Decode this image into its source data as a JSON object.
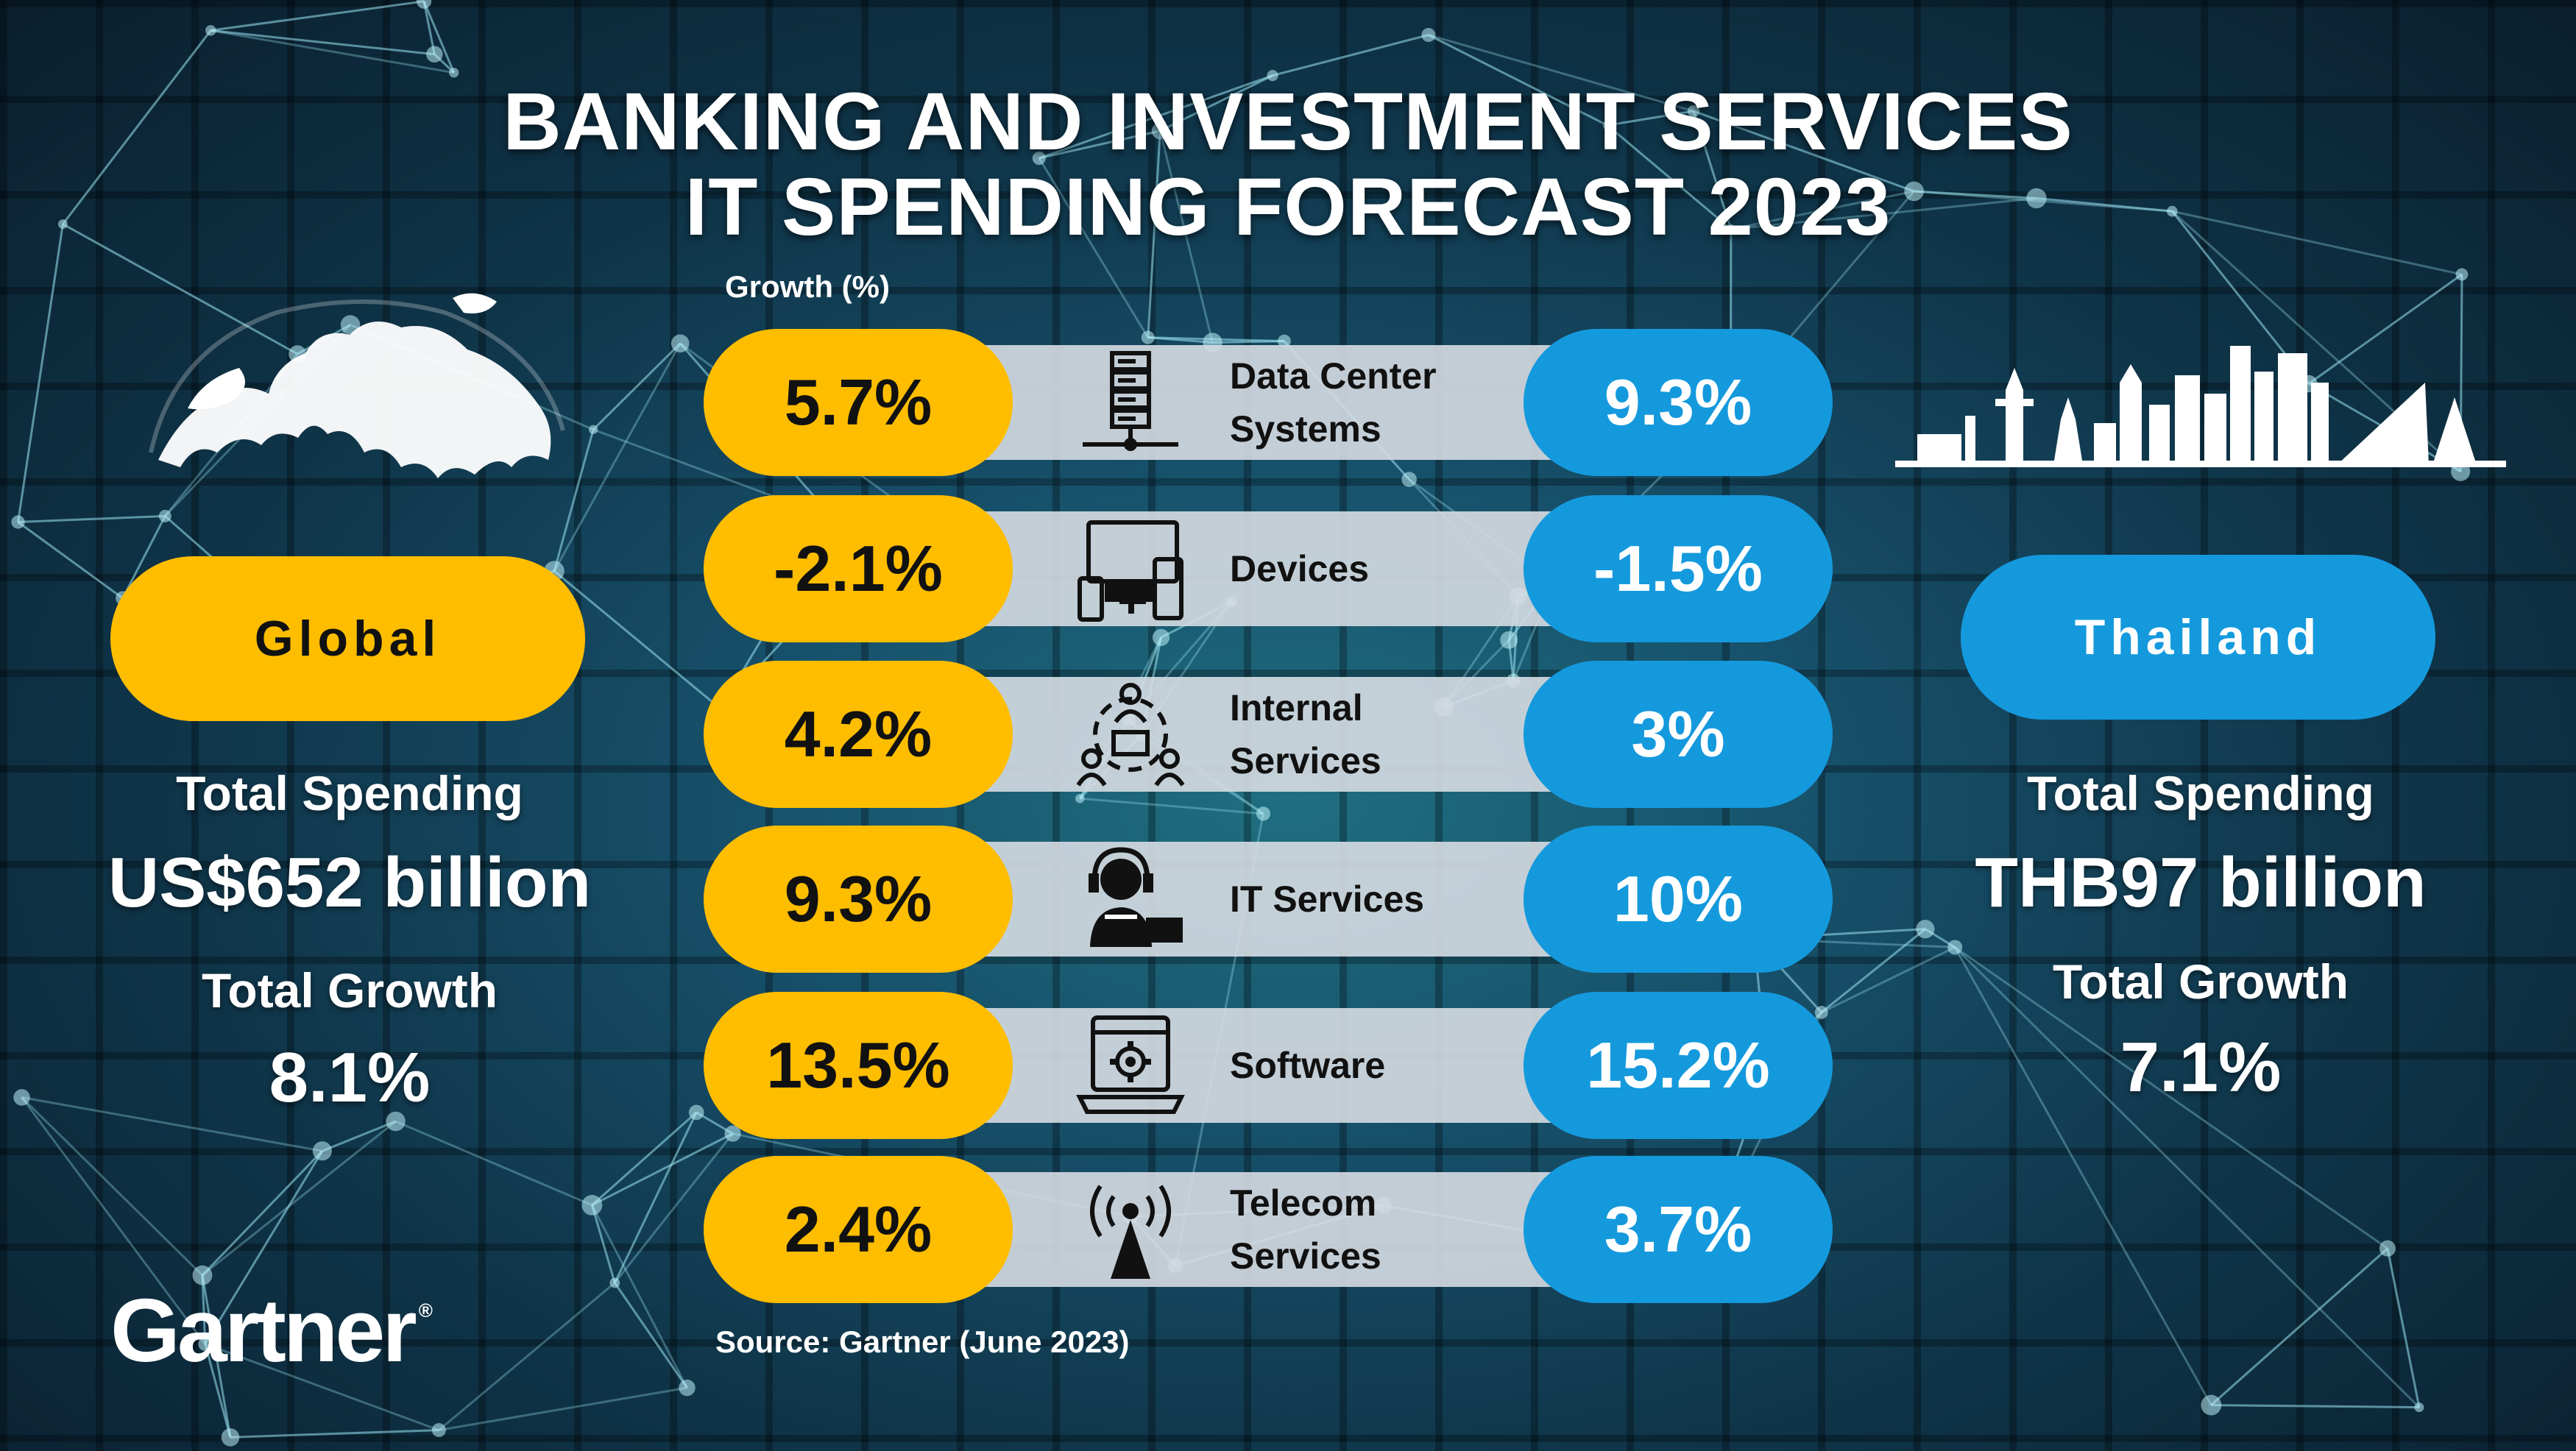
{
  "title": {
    "line1": "BANKING AND INVESTMENT SERVICES",
    "line2": "IT SPENDING FORECAST 2023"
  },
  "growth_label": "Growth (%)",
  "source": "Source: Gartner (June 2023)",
  "logo": {
    "text": "Gartner",
    "mark": "®"
  },
  "global": {
    "label": "Global",
    "spending_label": "Total Spending",
    "spending_value": "US$652 billion",
    "growth_label": "Total Growth",
    "growth_value": "8.1%"
  },
  "thailand": {
    "label": "Thailand",
    "spending_label": "Total Spending",
    "spending_value": "THB97 billion",
    "growth_label": "Total Growth",
    "growth_value": "7.1%"
  },
  "colors": {
    "global": "#ffbd00",
    "thailand": "#1499dd",
    "strip": "#d6dce2",
    "background": "#0f3448"
  },
  "chart_data": {
    "type": "table",
    "columns": [
      "Global",
      "Thailand"
    ],
    "rows": [
      {
        "category_lines": [
          "Data Center",
          "Systems"
        ],
        "icon": "server-icon",
        "global": 5.7,
        "global_label": "5.7%",
        "thailand": 9.3,
        "thailand_label": "9.3%"
      },
      {
        "category_lines": [
          "Devices"
        ],
        "icon": "devices-icon",
        "global": -2.1,
        "global_label": "-2.1%",
        "thailand": -1.5,
        "thailand_label": "-1.5%"
      },
      {
        "category_lines": [
          "Internal",
          "Services"
        ],
        "icon": "team-icon",
        "global": 4.2,
        "global_label": "4.2%",
        "thailand": 3,
        "thailand_label": "3%"
      },
      {
        "category_lines": [
          "IT Services"
        ],
        "icon": "headset-support-icon",
        "global": 9.3,
        "global_label": "9.3%",
        "thailand": 10,
        "thailand_label": "10%"
      },
      {
        "category_lines": [
          "Software"
        ],
        "icon": "laptop-gear-icon",
        "global": 13.5,
        "global_label": "13.5%",
        "thailand": 15.2,
        "thailand_label": "15.2%"
      },
      {
        "category_lines": [
          "Telecom",
          "Services"
        ],
        "icon": "antenna-icon",
        "global": 2.4,
        "global_label": "2.4%",
        "thailand": 3.7,
        "thailand_label": "3.7%"
      }
    ]
  }
}
